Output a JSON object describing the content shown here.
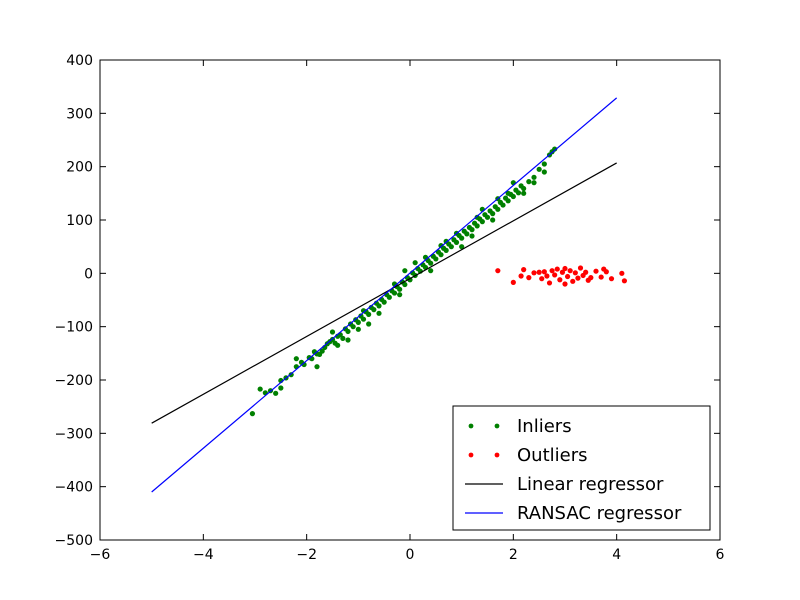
{
  "chart_data": {
    "type": "scatter",
    "title": "",
    "xlabel": "",
    "ylabel": "",
    "xlim": [
      -6,
      6
    ],
    "ylim": [
      -500,
      400
    ],
    "xticks": [
      -6,
      -4,
      -2,
      0,
      2,
      4,
      6
    ],
    "yticks": [
      -500,
      -400,
      -300,
      -200,
      -100,
      0,
      100,
      200,
      300,
      400
    ],
    "grid": false,
    "legend_position": "lower-right",
    "series": [
      {
        "name": "Inliers",
        "kind": "points",
        "color": "#008000",
        "points": [
          [
            -3.05,
            -263
          ],
          [
            -2.9,
            -217
          ],
          [
            -2.8,
            -224
          ],
          [
            -2.7,
            -220
          ],
          [
            -2.6,
            -225
          ],
          [
            -2.5,
            -201
          ],
          [
            -2.4,
            -196
          ],
          [
            -2.3,
            -190
          ],
          [
            -2.2,
            -175
          ],
          [
            -2.1,
            -167
          ],
          [
            -2.05,
            -171
          ],
          [
            -1.95,
            -158
          ],
          [
            -1.9,
            -160
          ],
          [
            -1.85,
            -147
          ],
          [
            -1.8,
            -151
          ],
          [
            -1.75,
            -152
          ],
          [
            -1.7,
            -146
          ],
          [
            -1.65,
            -139
          ],
          [
            -1.6,
            -132
          ],
          [
            -1.55,
            -128
          ],
          [
            -1.5,
            -124
          ],
          [
            -1.45,
            -131
          ],
          [
            -1.4,
            -118
          ],
          [
            -1.35,
            -115
          ],
          [
            -1.3,
            -122
          ],
          [
            -1.25,
            -104
          ],
          [
            -1.2,
            -109
          ],
          [
            -1.15,
            -95
          ],
          [
            -1.1,
            -100
          ],
          [
            -1.05,
            -87
          ],
          [
            -1.0,
            -92
          ],
          [
            -0.95,
            -80
          ],
          [
            -0.9,
            -86
          ],
          [
            -0.85,
            -72
          ],
          [
            -0.8,
            -77
          ],
          [
            -0.75,
            -64
          ],
          [
            -0.7,
            -68
          ],
          [
            -0.65,
            -56
          ],
          [
            -0.6,
            -61
          ],
          [
            -0.55,
            -49
          ],
          [
            -0.5,
            -54
          ],
          [
            -0.45,
            -40
          ],
          [
            -0.4,
            -45
          ],
          [
            -0.35,
            -33
          ],
          [
            -0.3,
            -37
          ],
          [
            -0.25,
            -25
          ],
          [
            -0.2,
            -30
          ],
          [
            -0.15,
            -16
          ],
          [
            -0.1,
            -21
          ],
          [
            -0.05,
            -8
          ],
          [
            0.0,
            -12
          ],
          [
            0.05,
            1
          ],
          [
            0.1,
            -4
          ],
          [
            0.15,
            9
          ],
          [
            0.2,
            4
          ],
          [
            0.25,
            16
          ],
          [
            0.3,
            11
          ],
          [
            0.35,
            24
          ],
          [
            0.4,
            19
          ],
          [
            0.45,
            32
          ],
          [
            0.5,
            27
          ],
          [
            0.55,
            40
          ],
          [
            0.6,
            35
          ],
          [
            0.65,
            47
          ],
          [
            0.7,
            43
          ],
          [
            0.75,
            55
          ],
          [
            0.8,
            50
          ],
          [
            0.85,
            63
          ],
          [
            0.9,
            58
          ],
          [
            0.95,
            71
          ],
          [
            1.0,
            66
          ],
          [
            1.05,
            79
          ],
          [
            1.1,
            74
          ],
          [
            1.15,
            86
          ],
          [
            1.2,
            82
          ],
          [
            1.25,
            94
          ],
          [
            1.3,
            89
          ],
          [
            1.35,
            102
          ],
          [
            1.4,
            97
          ],
          [
            1.45,
            110
          ],
          [
            1.5,
            105
          ],
          [
            1.55,
            117
          ],
          [
            1.6,
            112
          ],
          [
            1.65,
            125
          ],
          [
            1.7,
            120
          ],
          [
            1.75,
            133
          ],
          [
            1.8,
            128
          ],
          [
            1.85,
            141
          ],
          [
            1.9,
            136
          ],
          [
            1.95,
            148
          ],
          [
            2.0,
            144
          ],
          [
            2.05,
            156
          ],
          [
            2.1,
            151
          ],
          [
            2.15,
            164
          ],
          [
            2.2,
            159
          ],
          [
            2.3,
            172
          ],
          [
            2.4,
            180
          ],
          [
            2.5,
            195
          ],
          [
            2.6,
            205
          ],
          [
            2.7,
            222
          ],
          [
            2.75,
            228
          ],
          [
            2.8,
            233
          ],
          [
            -2.2,
            -160
          ],
          [
            -1.8,
            -175
          ],
          [
            -1.5,
            -110
          ],
          [
            -1.2,
            -125
          ],
          [
            -0.9,
            -70
          ],
          [
            -0.6,
            -75
          ],
          [
            -0.3,
            -20
          ],
          [
            0.1,
            20
          ],
          [
            0.4,
            5
          ],
          [
            0.7,
            60
          ],
          [
            1.0,
            50
          ],
          [
            1.3,
            105
          ],
          [
            1.6,
            100
          ],
          [
            1.9,
            150
          ],
          [
            2.2,
            150
          ],
          [
            -1.0,
            -105
          ],
          [
            -0.2,
            -40
          ],
          [
            0.6,
            52
          ],
          [
            1.4,
            120
          ],
          [
            2.0,
            170
          ],
          [
            -2.5,
            -215
          ],
          [
            -1.4,
            -135
          ],
          [
            -0.8,
            -95
          ],
          [
            -0.1,
            5
          ],
          [
            0.3,
            30
          ],
          [
            0.9,
            75
          ],
          [
            1.2,
            70
          ],
          [
            1.7,
            140
          ],
          [
            2.4,
            170
          ],
          [
            2.6,
            190
          ]
        ]
      },
      {
        "name": "Outliers",
        "kind": "points",
        "color": "#ff0000",
        "points": [
          [
            1.7,
            5
          ],
          [
            2.0,
            -17
          ],
          [
            2.15,
            -5
          ],
          [
            2.2,
            7
          ],
          [
            2.3,
            -8
          ],
          [
            2.4,
            1
          ],
          [
            2.5,
            2
          ],
          [
            2.55,
            -10
          ],
          [
            2.6,
            3
          ],
          [
            2.7,
            -18
          ],
          [
            2.75,
            5
          ],
          [
            2.8,
            -3
          ],
          [
            2.85,
            8
          ],
          [
            2.9,
            -12
          ],
          [
            2.95,
            2
          ],
          [
            3.0,
            -20
          ],
          [
            3.05,
            -6
          ],
          [
            3.1,
            5
          ],
          [
            3.15,
            -15
          ],
          [
            3.2,
            1
          ],
          [
            3.25,
            -9
          ],
          [
            3.3,
            10
          ],
          [
            3.35,
            -4
          ],
          [
            3.4,
            2
          ],
          [
            3.5,
            -8
          ],
          [
            3.6,
            4
          ],
          [
            3.7,
            -7
          ],
          [
            3.8,
            3
          ],
          [
            3.9,
            -10
          ],
          [
            4.1,
            0
          ],
          [
            4.15,
            -14
          ],
          [
            3.0,
            9
          ],
          [
            2.65,
            -5
          ],
          [
            3.45,
            -13
          ],
          [
            3.75,
            8
          ]
        ]
      },
      {
        "name": "Linear regressor",
        "kind": "line",
        "color": "#000000",
        "points": [
          [
            -5,
            -281
          ],
          [
            4,
            207
          ]
        ]
      },
      {
        "name": "RANSAC regressor",
        "kind": "line",
        "color": "#0000ff",
        "points": [
          [
            -5,
            -410
          ],
          [
            4,
            329
          ]
        ]
      }
    ]
  }
}
